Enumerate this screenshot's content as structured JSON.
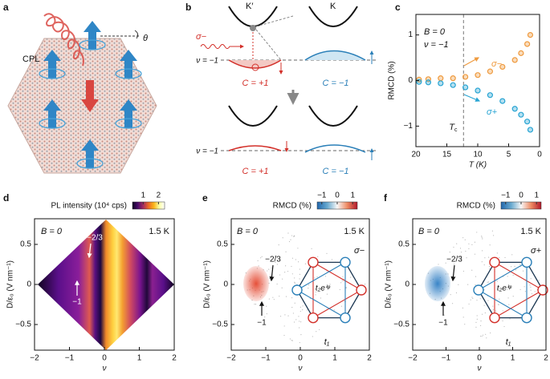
{
  "panel_a": {
    "label": "a",
    "texts": [
      "CPL",
      "θ"
    ]
  },
  "panel_b": {
    "label": "b",
    "valleys": [
      "K′",
      "K"
    ],
    "polarization": "σ−",
    "filling": [
      "ν = −1",
      "ν = −1"
    ],
    "chern": [
      "C = +1",
      "C = −1",
      "C = +1",
      "C = −1"
    ]
  },
  "chart_data": [
    {
      "type": "line",
      "panel": "c",
      "xlabel": "T (K)",
      "ylabel": "RMCD (%)",
      "xlim": [
        20,
        0
      ],
      "ylim": [
        -1.45,
        1.45
      ],
      "xticks": [
        20,
        15,
        10,
        5,
        0
      ],
      "yticks": [
        1,
        0,
        {
          "value": -1,
          "label": "−1"
        }
      ],
      "x": [
        19.5,
        18,
        16,
        14,
        12,
        10,
        8,
        6,
        4,
        3,
        2,
        1.5
      ],
      "series": [
        {
          "name": "σ−",
          "color": "#ef9a3e",
          "values": [
            0.02,
            0.03,
            0.05,
            0.05,
            0.08,
            0.12,
            0.2,
            0.3,
            0.45,
            0.6,
            0.8,
            1.0
          ]
        },
        {
          "name": "σ+",
          "color": "#27a4d3",
          "values": [
            -0.03,
            -0.04,
            -0.06,
            -0.1,
            -0.15,
            -0.22,
            -0.32,
            -0.45,
            -0.62,
            -0.75,
            -0.9,
            -1.08
          ]
        }
      ],
      "annotations": [
        "B = 0",
        "ν = −1"
      ],
      "tc_line": 12.3,
      "tc_label": [
        "T",
        "c"
      ]
    },
    {
      "type": "heatmap",
      "panel": "d",
      "xlabel": "ν",
      "ylabel": "D/ε₀ (V nm⁻¹)",
      "xlim": [
        -2,
        2
      ],
      "ylim": [
        -0.82,
        0.82
      ],
      "xticks": [
        {
          "value": -2,
          "label": "−2"
        },
        {
          "value": -1,
          "label": "−1"
        },
        0,
        1,
        2
      ],
      "yticks": [
        {
          "value": -0.5,
          "label": "−0.5"
        },
        0,
        0.5
      ],
      "colorbar": {
        "label": "PL intensity (10⁴ cps)",
        "lim": [
          0.3,
          2.4
        ],
        "ticks": [
          1,
          2
        ],
        "colors": [
          "#0d0221",
          "#4b0c6b",
          "#a52c60",
          "#ed6925",
          "#fbb61a",
          "#fcffa4",
          "#ffffff"
        ]
      },
      "annotations": [
        "B = 0",
        "1.5 K",
        "−2/3",
        "−1"
      ]
    },
    {
      "type": "heatmap",
      "panel": "e",
      "xlabel": "ν",
      "ylabel": "D/ε₀ (V nm⁻¹)",
      "xlim": [
        -2,
        2
      ],
      "ylim": [
        -0.82,
        0.82
      ],
      "xticks": [
        {
          "value": -2,
          "label": "−2"
        },
        {
          "value": -1,
          "label": "−1"
        },
        0,
        1,
        2
      ],
      "yticks": [
        {
          "value": -0.5,
          "label": "−0.5"
        },
        0,
        0.5
      ],
      "colorbar": {
        "label": "RMCD (%)",
        "lim": [
          -1.3,
          1.3
        ],
        "ticks": [
          {
            "value": -1,
            "label": "−1"
          },
          0,
          1
        ],
        "colors": [
          "#2166ac",
          "#67a9cf",
          "#f7f7f7",
          "#ef8a62",
          "#b2182b"
        ]
      },
      "annotations": [
        "B = 0",
        "1.5 K",
        "σ−",
        "−2/3",
        "−1",
        "t₂eⁱᵠ",
        "t₁"
      ],
      "blob_color": "#e4472f"
    },
    {
      "type": "heatmap",
      "panel": "f",
      "xlabel": "ν",
      "ylabel": "D/ε₀ (V nm⁻¹)",
      "xlim": [
        -2,
        2
      ],
      "ylim": [
        -0.82,
        0.82
      ],
      "xticks": [
        {
          "value": -2,
          "label": "−2"
        },
        {
          "value": -1,
          "label": "−1"
        },
        0,
        1,
        2
      ],
      "yticks": [
        {
          "value": -0.5,
          "label": "−0.5"
        },
        0,
        0.5
      ],
      "colorbar": {
        "label": "RMCD (%)",
        "lim": [
          -1.3,
          1.3
        ],
        "ticks": [
          {
            "value": -1,
            "label": "−1"
          },
          0,
          1
        ],
        "colors": [
          "#2166ac",
          "#67a9cf",
          "#f7f7f7",
          "#ef8a62",
          "#b2182b"
        ]
      },
      "annotations": [
        "B = 0",
        "1.5 K",
        "σ+",
        "−2/3",
        "−1",
        "t₂eⁱᵠ",
        "t₁"
      ],
      "blob_color": "#2f7ec4"
    }
  ]
}
